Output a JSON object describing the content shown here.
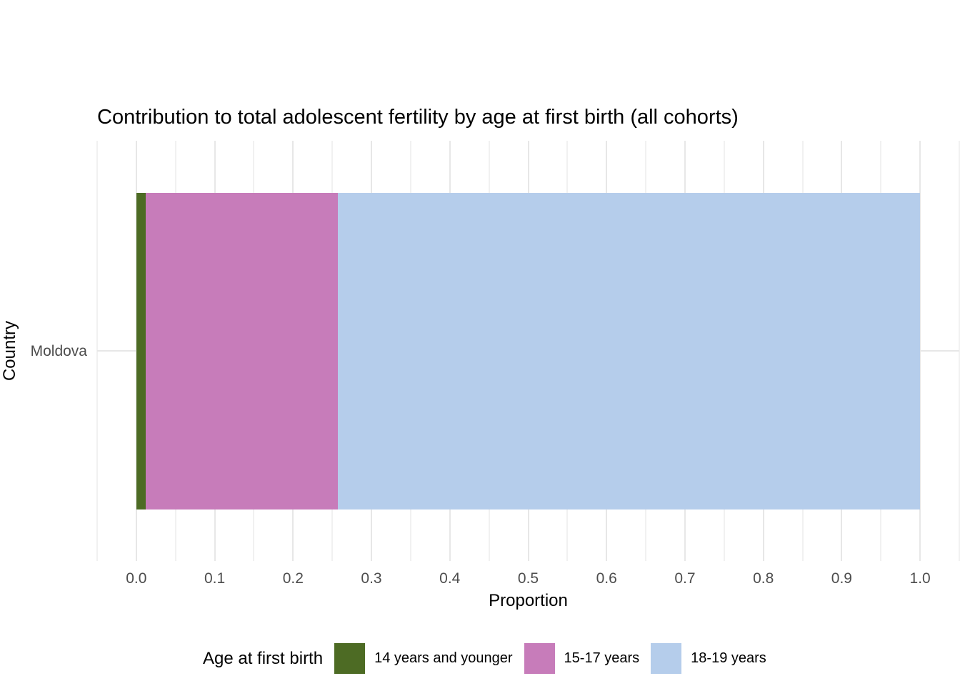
{
  "chart_data": {
    "type": "bar",
    "orientation": "horizontal",
    "stacked": true,
    "title": "Contribution to total adolescent fertility by age at first birth (all cohorts)",
    "xlabel": "Proportion",
    "ylabel": "Country",
    "categories": [
      "Moldova"
    ],
    "series": [
      {
        "name": "14 years and younger",
        "color": "#4d6b24",
        "values": [
          0.012
        ]
      },
      {
        "name": "15-17 years",
        "color": "#c77cba",
        "values": [
          0.245
        ]
      },
      {
        "name": "18-19 years",
        "color": "#b5cdeb",
        "values": [
          0.743
        ]
      }
    ],
    "xlim": [
      -0.05,
      1.05
    ],
    "x_ticks": [
      0.0,
      0.1,
      0.2,
      0.3,
      0.4,
      0.5,
      0.6,
      0.7,
      0.8,
      0.9,
      1.0
    ],
    "x_tick_labels": [
      "0.0",
      "0.1",
      "0.2",
      "0.3",
      "0.4",
      "0.5",
      "0.6",
      "0.7",
      "0.8",
      "0.9",
      "1.0"
    ],
    "x_minor_ticks": [
      -0.05,
      0.05,
      0.15,
      0.25,
      0.35,
      0.45,
      0.55,
      0.65,
      0.75,
      0.85,
      0.95,
      1.05
    ],
    "grid": true,
    "legend": {
      "title": "Age at first birth",
      "position": "bottom"
    },
    "colors": {
      "panel_background": "#ffffff",
      "grid_major": "#e7e7e7",
      "grid_minor": "#f1f1f1",
      "axis_text": "#4d4d4d",
      "text": "#000000"
    }
  }
}
